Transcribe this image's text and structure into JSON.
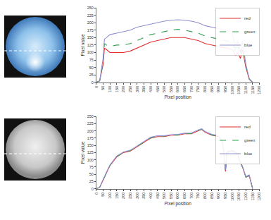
{
  "chart_data": [
    {
      "type": "line",
      "x": [
        0,
        25,
        50,
        60,
        75,
        100,
        150,
        200,
        250,
        300,
        350,
        400,
        450,
        500,
        550,
        600,
        650,
        700,
        750,
        800,
        850,
        900,
        950,
        1000,
        1025,
        1040,
        1060,
        1075,
        1100,
        1125,
        1150
      ],
      "series": [
        {
          "name": "red",
          "color": "#e03030",
          "line_style": "solid",
          "values": [
            0,
            5,
            60,
            115,
            110,
            100,
            100,
            100,
            105,
            115,
            125,
            135,
            140,
            145,
            150,
            150,
            150,
            145,
            140,
            130,
            125,
            120,
            115,
            110,
            90,
            100,
            80,
            110,
            50,
            10,
            0
          ]
        },
        {
          "name": "green",
          "color": "#30a050",
          "line_style": "dash",
          "values": [
            0,
            5,
            70,
            130,
            125,
            120,
            125,
            125,
            130,
            140,
            150,
            160,
            165,
            170,
            175,
            178,
            175,
            170,
            165,
            155,
            150,
            145,
            140,
            135,
            100,
            120,
            90,
            120,
            55,
            10,
            0
          ]
        },
        {
          "name": "blue",
          "color": "#8f8fd0",
          "line_style": "solid",
          "values": [
            0,
            5,
            80,
            145,
            150,
            160,
            165,
            170,
            175,
            185,
            190,
            195,
            200,
            205,
            208,
            210,
            208,
            205,
            200,
            190,
            185,
            180,
            175,
            170,
            110,
            140,
            100,
            140,
            60,
            12,
            0
          ]
        }
      ],
      "x_label": "Pixel position",
      "y_label": "Pixel value",
      "xlim": [
        0,
        1200
      ],
      "xticks": [
        0,
        50,
        100,
        150,
        200,
        250,
        300,
        350,
        400,
        450,
        500,
        550,
        600,
        650,
        700,
        750,
        800,
        850,
        900,
        950,
        1000,
        1050,
        1100,
        1150,
        1200
      ],
      "ylim": [
        0,
        250
      ],
      "yticks": [
        0,
        25,
        50,
        75,
        100,
        125,
        150,
        175,
        200,
        225,
        250
      ],
      "grid": false,
      "legend": "upper right"
    },
    {
      "type": "line",
      "x": [
        0,
        25,
        50,
        100,
        150,
        200,
        250,
        300,
        350,
        400,
        450,
        500,
        550,
        600,
        650,
        700,
        750,
        775,
        800,
        850,
        900,
        925,
        940,
        950,
        960,
        1000,
        1040,
        1050,
        1075,
        1100,
        1125,
        1150
      ],
      "series": [
        {
          "name": "red",
          "color": "#e03030",
          "line_style": "solid",
          "values": [
            0,
            5,
            30,
            80,
            110,
            125,
            130,
            145,
            160,
            175,
            180,
            180,
            185,
            185,
            190,
            190,
            200,
            205,
            195,
            185,
            180,
            165,
            120,
            60,
            125,
            130,
            120,
            100,
            75,
            40,
            45,
            0
          ]
        },
        {
          "name": "green",
          "color": "#30a050",
          "line_style": "dash",
          "values": [
            0,
            5,
            30,
            80,
            112,
            125,
            132,
            146,
            162,
            176,
            181,
            182,
            186,
            186,
            190,
            191,
            201,
            206,
            196,
            186,
            181,
            166,
            122,
            55,
            126,
            131,
            121,
            102,
            76,
            40,
            46,
            0
          ]
        },
        {
          "name": "blue",
          "color": "#8f8fd0",
          "line_style": "solid",
          "values": [
            0,
            5,
            32,
            82,
            113,
            127,
            133,
            148,
            163,
            178,
            183,
            183,
            187,
            188,
            192,
            193,
            203,
            207,
            198,
            188,
            183,
            168,
            125,
            65,
            128,
            133,
            123,
            104,
            78,
            42,
            48,
            0
          ]
        }
      ],
      "x_label": "Pixel position",
      "y_label": "Pixel value",
      "xlim": [
        0,
        1200
      ],
      "xticks": [
        0,
        50,
        100,
        150,
        200,
        250,
        300,
        350,
        400,
        450,
        500,
        550,
        600,
        650,
        700,
        750,
        800,
        850,
        900,
        950,
        1000,
        1050,
        1100,
        1150,
        1200
      ],
      "ylim": [
        0,
        250
      ],
      "yticks": [
        0,
        25,
        50,
        75,
        100,
        125,
        150,
        175,
        200,
        225,
        250
      ],
      "grid": false,
      "legend": "upper right"
    }
  ]
}
